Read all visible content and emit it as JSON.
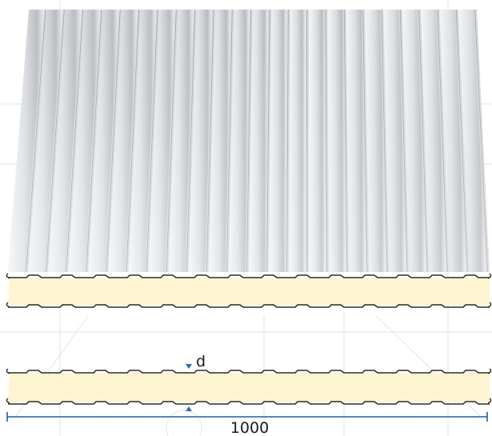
{
  "diagram": {
    "thickness_label": "d",
    "width_label": "1000"
  },
  "colors": {
    "metal_light": "#eef0f2",
    "metal_mid": "#c8cbcf",
    "metal_dark": "#a8abb0",
    "core_fill": "#fdf5d2",
    "outline": "#2b2b2b",
    "dimension": "#1f5f9f",
    "marker": "#2a6fb3",
    "background_lines": "#e4e6e8"
  }
}
